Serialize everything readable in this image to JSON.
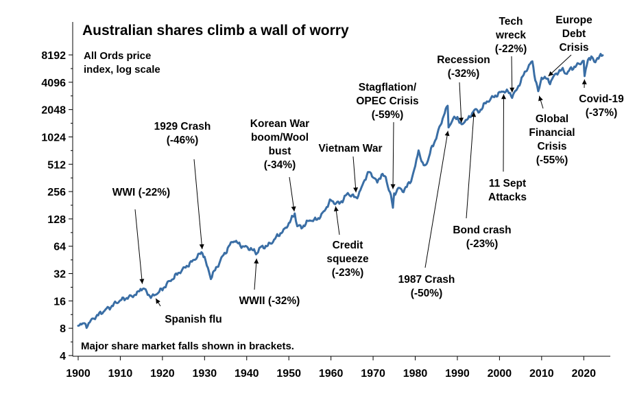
{
  "chart_data": {
    "type": "line",
    "title": "Australian shares climb a wall of worry",
    "subtitle": [
      "All Ords price",
      "index, log scale"
    ],
    "note": "Major share market falls shown in brackets.",
    "xlabel": "",
    "ylabel": "",
    "xlim": [
      1900,
      2025
    ],
    "ylim": [
      4,
      16384
    ],
    "y_scale": "log2",
    "grid": false,
    "x_ticks": [
      "1900",
      "1910",
      "1920",
      "1930",
      "1940",
      "1950",
      "1960",
      "1970",
      "1980",
      "1990",
      "2000",
      "2010",
      "2020"
    ],
    "y_ticks": [
      "4",
      "8",
      "16",
      "32",
      "64",
      "128",
      "256",
      "512",
      "1024",
      "2048",
      "4096",
      "8192"
    ],
    "series": [
      {
        "name": "All Ords price index",
        "color": "#3A6EA5",
        "points": [
          [
            1900,
            8.6
          ],
          [
            1900.8,
            9.3
          ],
          [
            1901.5,
            8.8
          ],
          [
            1902,
            8.5
          ],
          [
            1903,
            9.6
          ],
          [
            1904,
            10.6
          ],
          [
            1905,
            11.4
          ],
          [
            1906,
            12.3
          ],
          [
            1907,
            13.2
          ],
          [
            1908,
            14.0
          ],
          [
            1909,
            15.3
          ],
          [
            1910,
            16.2
          ],
          [
            1911,
            17.0
          ],
          [
            1912,
            17.5
          ],
          [
            1913,
            18.3
          ],
          [
            1914,
            19.3
          ],
          [
            1914.8,
            20.8
          ],
          [
            1915.3,
            22.6
          ],
          [
            1916,
            20.5
          ],
          [
            1917,
            18.3
          ],
          [
            1917.5,
            17.6
          ],
          [
            1918,
            18.3
          ],
          [
            1919,
            20.0
          ],
          [
            1920,
            21.5
          ],
          [
            1921,
            24.5
          ],
          [
            1922,
            27.0
          ],
          [
            1923,
            30.0
          ],
          [
            1924,
            33.0
          ],
          [
            1925,
            36.0
          ],
          [
            1926,
            39.5
          ],
          [
            1927,
            43.0
          ],
          [
            1928,
            48.0
          ],
          [
            1929,
            53.0
          ],
          [
            1929.5,
            54.5
          ],
          [
            1930,
            49.0
          ],
          [
            1930.8,
            35.0
          ],
          [
            1931.5,
            29.0
          ],
          [
            1932,
            32.0
          ],
          [
            1933,
            38.0
          ],
          [
            1934,
            47.0
          ],
          [
            1935,
            55.0
          ],
          [
            1936,
            66.0
          ],
          [
            1937,
            75.0
          ],
          [
            1938,
            68.0
          ],
          [
            1939,
            64.0
          ],
          [
            1940,
            62.0
          ],
          [
            1941,
            60.0
          ],
          [
            1942,
            55.0
          ],
          [
            1942.4,
            51.0
          ],
          [
            1943,
            61.0
          ],
          [
            1944,
            63.0
          ],
          [
            1945,
            65.0
          ],
          [
            1946,
            71.0
          ],
          [
            1947,
            80.0
          ],
          [
            1948,
            89.0
          ],
          [
            1949,
            97.0
          ],
          [
            1950,
            115.0
          ],
          [
            1951,
            135.0
          ],
          [
            1951.4,
            142.0
          ],
          [
            1952,
            108.0
          ],
          [
            1953,
            103.0
          ],
          [
            1954,
            113.0
          ],
          [
            1955,
            125.0
          ],
          [
            1956,
            123.0
          ],
          [
            1957,
            130.0
          ],
          [
            1958,
            145.0
          ],
          [
            1959,
            175.0
          ],
          [
            1960,
            205.0
          ],
          [
            1961,
            192.0
          ],
          [
            1962,
            190.0
          ],
          [
            1963,
            212.0
          ],
          [
            1964,
            245.0
          ],
          [
            1965,
            230.0
          ],
          [
            1966,
            218.0
          ],
          [
            1967,
            260.0
          ],
          [
            1968,
            350.0
          ],
          [
            1969,
            420.0
          ],
          [
            1970,
            380.0
          ],
          [
            1971,
            320.0
          ],
          [
            1972,
            400.0
          ],
          [
            1973,
            360.0
          ],
          [
            1974,
            250.0
          ],
          [
            1974.7,
            175.0
          ],
          [
            1975,
            240.0
          ],
          [
            1976,
            280.0
          ],
          [
            1977,
            260.0
          ],
          [
            1978,
            290.0
          ],
          [
            1979,
            340.0
          ],
          [
            1980,
            480.0
          ],
          [
            1980.8,
            720.0
          ],
          [
            1981.5,
            560.0
          ],
          [
            1982,
            480.0
          ],
          [
            1983,
            560.0
          ],
          [
            1984,
            800.0
          ],
          [
            1985,
            1000.0
          ],
          [
            1986,
            1400.0
          ],
          [
            1987,
            1900.0
          ],
          [
            1987.7,
            2300.0
          ],
          [
            1987.9,
            1300.0
          ],
          [
            1988,
            1350.0
          ],
          [
            1989,
            1600.0
          ],
          [
            1990,
            1700.0
          ],
          [
            1991,
            1350.0
          ],
          [
            1992,
            1600.0
          ],
          [
            1993,
            1650.0
          ],
          [
            1994,
            2100.0
          ],
          [
            1995,
            1900.0
          ],
          [
            1996,
            2200.0
          ],
          [
            1997,
            2500.0
          ],
          [
            1998,
            2700.0
          ],
          [
            1999,
            2900.0
          ],
          [
            2000,
            3100.0
          ],
          [
            2001,
            3300.0
          ],
          [
            2002,
            3200.0
          ],
          [
            2003,
            2900.0
          ],
          [
            2004,
            3300.0
          ],
          [
            2005,
            4200.0
          ],
          [
            2006,
            5200.0
          ],
          [
            2007,
            6300.0
          ],
          [
            2007.8,
            6800.0
          ],
          [
            2008.5,
            4500.0
          ],
          [
            2009.2,
            3150.0
          ],
          [
            2010,
            4700.0
          ],
          [
            2011,
            4500.0
          ],
          [
            2012,
            4100.0
          ],
          [
            2013,
            4800.0
          ],
          [
            2014,
            5400.0
          ],
          [
            2015,
            5600.0
          ],
          [
            2016,
            5100.0
          ],
          [
            2017,
            5800.0
          ],
          [
            2018,
            6100.0
          ],
          [
            2019,
            6600.0
          ],
          [
            2020,
            7100.0
          ],
          [
            2020.2,
            4800.0
          ],
          [
            2021,
            7500.0
          ],
          [
            2021.8,
            7800.0
          ],
          [
            2022.5,
            6800.0
          ],
          [
            2023,
            7400.0
          ],
          [
            2024,
            7900.0
          ],
          [
            2024.5,
            8100.0
          ]
        ]
      }
    ],
    "annotations": [
      {
        "lines": [
          "WWI (-22%)"
        ],
        "x": 1915.3,
        "y": 22.6
      },
      {
        "lines": [
          "Spanish flu"
        ],
        "x": 1918,
        "y": 18.3
      },
      {
        "lines": [
          "1929 Crash",
          "(-46%)"
        ],
        "x": 1929.5,
        "y": 54.5
      },
      {
        "lines": [
          "WWII (-32%)"
        ],
        "x": 1942.4,
        "y": 51
      },
      {
        "lines": [
          "Korean War",
          "boom/Wool",
          "bust",
          "(-34%)"
        ],
        "x": 1951.4,
        "y": 142
      },
      {
        "lines": [
          "Credit",
          "squeeze",
          "(-23%)"
        ],
        "x": 1961,
        "y": 192
      },
      {
        "lines": [
          "Vietnam War"
        ],
        "x": 1966,
        "y": 230
      },
      {
        "lines": [
          "Stagflation/",
          "OPEC Crisis",
          "(-59%)"
        ],
        "x": 1974.7,
        "y": 250
      },
      {
        "lines": [
          "1987 Crash",
          "(-50%)"
        ],
        "x": 1987.9,
        "y": 1300
      },
      {
        "lines": [
          "Recession",
          "(-32%)"
        ],
        "x": 1991,
        "y": 1350
      },
      {
        "lines": [
          "Bond crash",
          "(-23%)"
        ],
        "x": 1994,
        "y": 2100
      },
      {
        "lines": [
          "11 Sept",
          "Attacks"
        ],
        "x": 2001,
        "y": 3300
      },
      {
        "lines": [
          "Tech",
          "wreck",
          "(-22%)"
        ],
        "x": 2003,
        "y": 2900
      },
      {
        "lines": [
          "Global",
          "Financial",
          "Crisis",
          "(-55%)"
        ],
        "x": 2009.2,
        "y": 3150
      },
      {
        "lines": [
          "Europe",
          "Debt",
          "Crisis"
        ],
        "x": 2011,
        "y": 4500
      },
      {
        "lines": [
          "Covid-19",
          "(-37%)"
        ],
        "x": 2020.2,
        "y": 4800
      }
    ]
  }
}
